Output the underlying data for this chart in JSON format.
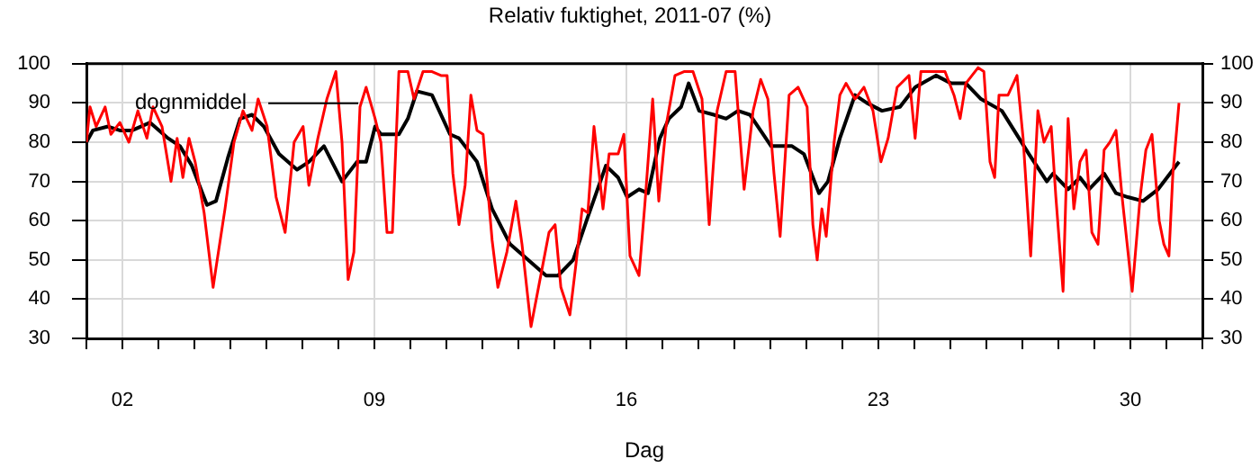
{
  "chart_data": {
    "type": "line",
    "title": "Relativ fuktighet, 2011-07 (%)",
    "xlabel": "Dag",
    "xlim": [
      1,
      32
    ],
    "xticks": [
      {
        "value": 1,
        "label": null
      },
      {
        "value": 2,
        "label": "02"
      },
      {
        "value": 3,
        "label": null
      },
      {
        "value": 4,
        "label": null
      },
      {
        "value": 5,
        "label": null
      },
      {
        "value": 6,
        "label": null
      },
      {
        "value": 7,
        "label": null
      },
      {
        "value": 8,
        "label": null
      },
      {
        "value": 9,
        "label": "09"
      },
      {
        "value": 10,
        "label": null
      },
      {
        "value": 11,
        "label": null
      },
      {
        "value": 12,
        "label": null
      },
      {
        "value": 13,
        "label": null
      },
      {
        "value": 14,
        "label": null
      },
      {
        "value": 15,
        "label": null
      },
      {
        "value": 16,
        "label": "16"
      },
      {
        "value": 17,
        "label": null
      },
      {
        "value": 18,
        "label": null
      },
      {
        "value": 19,
        "label": null
      },
      {
        "value": 20,
        "label": null
      },
      {
        "value": 21,
        "label": null
      },
      {
        "value": 22,
        "label": null
      },
      {
        "value": 23,
        "label": "23"
      },
      {
        "value": 24,
        "label": null
      },
      {
        "value": 25,
        "label": null
      },
      {
        "value": 26,
        "label": null
      },
      {
        "value": 27,
        "label": null
      },
      {
        "value": 28,
        "label": null
      },
      {
        "value": 29,
        "label": null
      },
      {
        "value": 30,
        "label": "30"
      },
      {
        "value": 31,
        "label": null
      },
      {
        "value": 32,
        "label": null
      }
    ],
    "ylim": [
      30,
      100
    ],
    "yticks": [
      30,
      40,
      50,
      60,
      70,
      80,
      90,
      100
    ],
    "y2lim": [
      30,
      100
    ],
    "y2ticks": [
      30,
      40,
      50,
      60,
      70,
      80,
      90,
      100
    ],
    "grid": true,
    "legend": "top left",
    "series": [
      {
        "color": "#ff0000",
        "x": [
          1.0,
          1.1,
          1.27,
          1.52,
          1.68,
          1.93,
          2.18,
          2.43,
          2.68,
          2.85,
          3.1,
          3.35,
          3.52,
          3.68,
          3.85,
          4.02,
          4.27,
          4.52,
          4.6,
          4.85,
          5.1,
          5.35,
          5.6,
          5.77,
          6.02,
          6.27,
          6.52,
          6.77,
          7.02,
          7.18,
          7.43,
          7.68,
          7.93,
          8.1,
          8.27,
          8.43,
          8.6,
          8.77,
          9.02,
          9.18,
          9.35,
          9.5,
          9.68,
          9.93,
          10.1,
          10.35,
          10.6,
          10.85,
          11.02,
          11.18,
          11.35,
          11.52,
          11.68,
          11.85,
          12.02,
          12.27,
          12.43,
          12.68,
          12.93,
          13.1,
          13.35,
          13.6,
          13.85,
          14.02,
          14.18,
          14.43,
          14.6,
          14.77,
          14.93,
          15.1,
          15.35,
          15.52,
          15.77,
          15.93,
          16.1,
          16.35,
          16.52,
          16.73,
          16.9,
          17.1,
          17.35,
          17.6,
          17.85,
          18.1,
          18.3,
          18.52,
          18.77,
          19.02,
          19.27,
          19.52,
          19.73,
          19.93,
          20.1,
          20.27,
          20.52,
          20.77,
          21.02,
          21.18,
          21.3,
          21.43,
          21.55,
          21.77,
          21.93,
          22.1,
          22.35,
          22.6,
          22.85,
          23.07,
          23.27,
          23.52,
          23.85,
          24.02,
          24.18,
          24.6,
          24.85,
          25.1,
          25.27,
          25.43,
          25.77,
          25.93,
          26.1,
          26.23,
          26.35,
          26.6,
          26.85,
          27.02,
          27.23,
          27.43,
          27.6,
          27.8,
          27.93,
          28.13,
          28.27,
          28.43,
          28.6,
          28.77,
          28.93,
          29.1,
          29.27,
          29.43,
          29.6,
          29.77,
          30.05,
          30.27,
          30.43,
          30.6,
          30.8,
          30.93,
          31.07,
          31.18,
          31.35
        ],
        "values": [
          80,
          89,
          84,
          89,
          82,
          85,
          80,
          88,
          81,
          89,
          84,
          70,
          81,
          71,
          81,
          75,
          62,
          43,
          48,
          63,
          80,
          88,
          83,
          91,
          84,
          66,
          57,
          80,
          84,
          69,
          81,
          91,
          98,
          80,
          45,
          52,
          89,
          94,
          86,
          80,
          57,
          57,
          98,
          98,
          91,
          98,
          98,
          97,
          97,
          72,
          59,
          69,
          92,
          83,
          82,
          55,
          43,
          52,
          65,
          54,
          33,
          45,
          57,
          59,
          43,
          36,
          49,
          63,
          62,
          84,
          63,
          77,
          77,
          82,
          51,
          46,
          65,
          91,
          65,
          84,
          97,
          98,
          98,
          91,
          59,
          88,
          98,
          98,
          68,
          88,
          96,
          91,
          72,
          56,
          92,
          94,
          89,
          59,
          50,
          63,
          56,
          80,
          92,
          95,
          91,
          94,
          88,
          75,
          81,
          94,
          97,
          81,
          98,
          98,
          98,
          92,
          86,
          95,
          99,
          98,
          75,
          71,
          92,
          92,
          97,
          81,
          51,
          88,
          80,
          84,
          66,
          42,
          86,
          63,
          75,
          78,
          57,
          54,
          78,
          80,
          83,
          66,
          42,
          66,
          78,
          82,
          60,
          54,
          51,
          72,
          90
        ]
      },
      {
        "name": "dognmiddel",
        "color": "#000000",
        "x": [
          1.0,
          1.18,
          1.6,
          1.93,
          2.27,
          2.77,
          3.27,
          3.6,
          3.93,
          4.35,
          4.6,
          4.93,
          5.27,
          5.6,
          5.93,
          6.35,
          6.85,
          7.18,
          7.6,
          8.1,
          8.52,
          8.77,
          9.02,
          9.18,
          9.68,
          9.93,
          10.18,
          10.6,
          11.1,
          11.35,
          11.85,
          12.27,
          12.77,
          13.27,
          13.77,
          14.1,
          14.52,
          14.93,
          15.43,
          15.77,
          16.02,
          16.35,
          16.6,
          16.93,
          17.18,
          17.52,
          17.73,
          18.02,
          18.43,
          18.77,
          19.1,
          19.43,
          20.02,
          20.6,
          20.93,
          21.35,
          21.6,
          21.93,
          22.35,
          22.68,
          23.1,
          23.6,
          24.02,
          24.6,
          25.02,
          25.43,
          25.85,
          26.43,
          26.77,
          27.18,
          27.68,
          27.85,
          28.27,
          28.6,
          28.85,
          29.27,
          29.6,
          29.93,
          30.35,
          30.77,
          31.35
        ],
        "values": [
          80,
          83,
          84,
          83,
          83,
          85,
          81,
          79,
          74,
          64,
          65,
          76,
          86,
          87,
          84,
          77,
          73,
          75,
          79,
          70,
          75,
          75,
          84,
          82,
          82,
          86,
          93,
          92,
          82,
          81,
          75,
          63,
          54,
          50,
          46,
          46,
          50,
          61,
          74,
          71,
          66,
          68,
          67,
          81,
          86,
          89,
          95,
          88,
          87,
          86,
          88,
          87,
          79,
          79,
          77,
          67,
          70,
          81,
          92,
          90,
          88,
          89,
          94,
          97,
          95,
          95,
          91,
          88,
          83,
          77,
          70,
          72,
          68,
          71,
          68,
          72,
          67,
          66,
          65,
          68,
          75
        ]
      }
    ]
  }
}
